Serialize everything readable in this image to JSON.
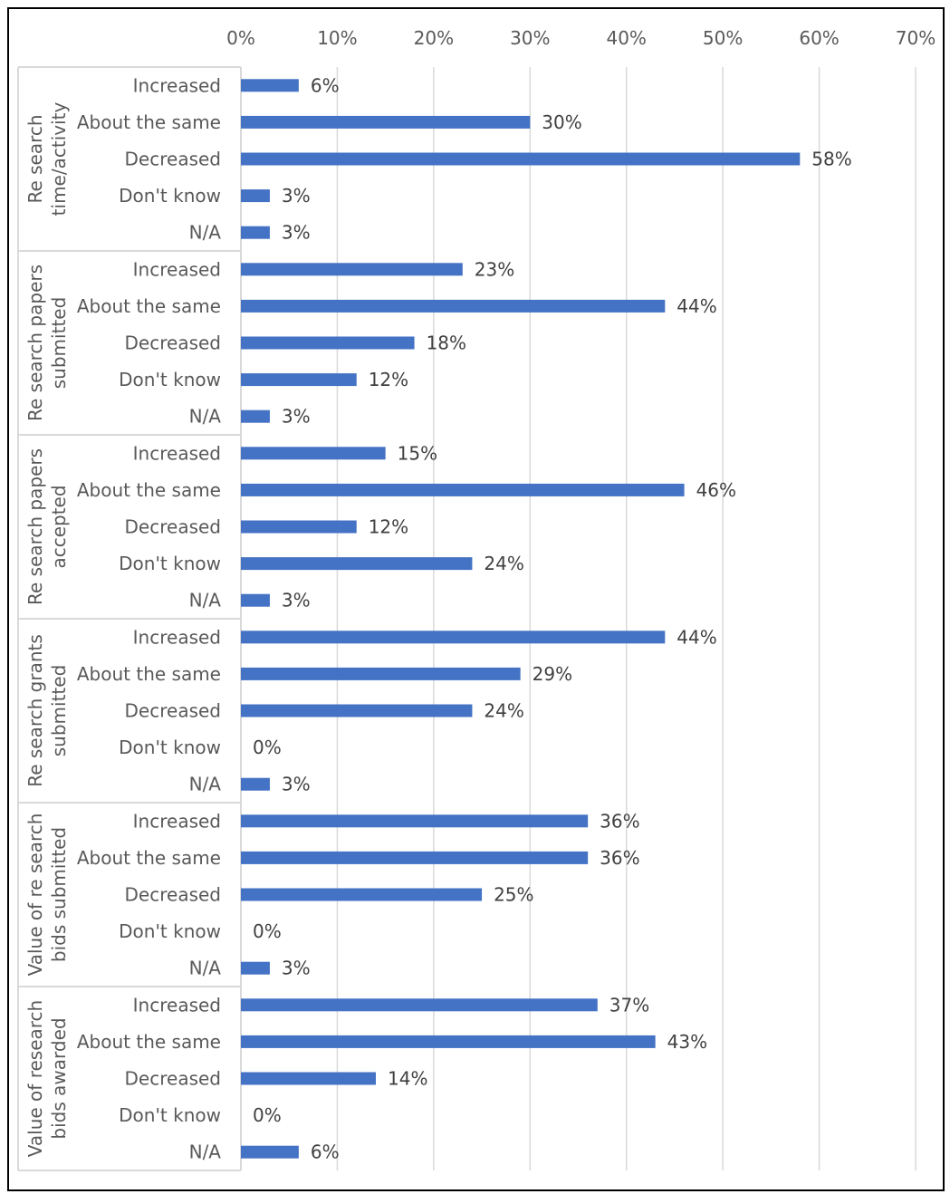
{
  "chart_data": {
    "type": "bar",
    "orientation": "horizontal",
    "title": "",
    "xlabel": "",
    "ylabel": "",
    "xlim": [
      0,
      70
    ],
    "x_ticks": [
      "0%",
      "10%",
      "20%",
      "30%",
      "40%",
      "50%",
      "60%",
      "70%"
    ],
    "x_tick_values": [
      0,
      10,
      20,
      30,
      40,
      50,
      60,
      70
    ],
    "x_axis_position": "top",
    "grid": true,
    "bar_color": "#4472C4",
    "categories": [
      "Increased",
      "About the same",
      "Decreased",
      "Don't know",
      "N/A"
    ],
    "groups": [
      {
        "label_lines": [
          "Re search",
          "time/activity"
        ],
        "values": [
          6,
          30,
          58,
          3,
          3
        ],
        "value_labels": [
          "6%",
          "30%",
          "58%",
          "3%",
          "3%"
        ]
      },
      {
        "label_lines": [
          "Re search papers",
          "submitted"
        ],
        "values": [
          23,
          44,
          18,
          12,
          3
        ],
        "value_labels": [
          "23%",
          "44%",
          "18%",
          "12%",
          "3%"
        ]
      },
      {
        "label_lines": [
          "Re search papers",
          "accepted"
        ],
        "values": [
          15,
          46,
          12,
          24,
          3
        ],
        "value_labels": [
          "15%",
          "46%",
          "12%",
          "24%",
          "3%"
        ]
      },
      {
        "label_lines": [
          "Re search grants",
          "submitted"
        ],
        "values": [
          44,
          29,
          24,
          0,
          3
        ],
        "value_labels": [
          "44%",
          "29%",
          "24%",
          "0%",
          "3%"
        ]
      },
      {
        "label_lines": [
          "Value of re search",
          "bids submitted"
        ],
        "values": [
          36,
          36,
          25,
          0,
          3
        ],
        "value_labels": [
          "36%",
          "36%",
          "25%",
          "0%",
          "3%"
        ]
      },
      {
        "label_lines": [
          "Value of research",
          "bids awarded"
        ],
        "values": [
          37,
          43,
          14,
          0,
          6
        ],
        "value_labels": [
          "37%",
          "43%",
          "14%",
          "0%",
          "6%"
        ]
      }
    ]
  }
}
